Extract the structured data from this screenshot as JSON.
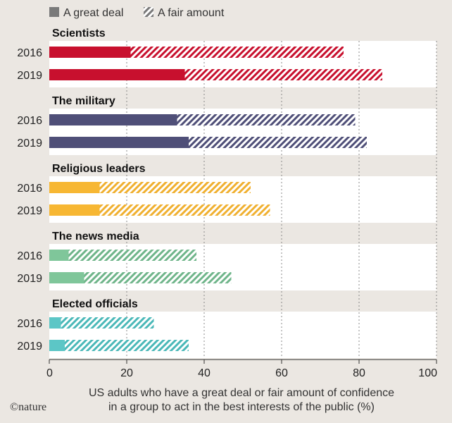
{
  "chart_data": {
    "type": "bar",
    "orientation": "horizontal",
    "stacked": true,
    "legend": {
      "placement": "top-left",
      "entries": [
        {
          "name": "A great deal",
          "pattern": "solid"
        },
        {
          "name": "A fair amount",
          "pattern": "hatched"
        }
      ]
    },
    "groups": [
      {
        "title": "Scientists",
        "color": "#c8102e",
        "hatch_color": "#c8102e",
        "rows": [
          {
            "year": "2016",
            "great_deal": 21,
            "fair_amount": 55
          },
          {
            "year": "2019",
            "great_deal": 35,
            "fair_amount": 51
          }
        ]
      },
      {
        "title": "The military",
        "color": "#4f4f78",
        "hatch_color": "#4f4f78",
        "rows": [
          {
            "year": "2016",
            "great_deal": 33,
            "fair_amount": 46
          },
          {
            "year": "2019",
            "great_deal": 36,
            "fair_amount": 46
          }
        ]
      },
      {
        "title": "Religious leaders",
        "color": "#f7b733",
        "hatch_color": "#f0b030",
        "rows": [
          {
            "year": "2016",
            "great_deal": 13,
            "fair_amount": 39
          },
          {
            "year": "2019",
            "great_deal": 13,
            "fair_amount": 44
          }
        ]
      },
      {
        "title": "The news media",
        "color": "#7fc69a",
        "hatch_color": "#6fb58a",
        "rows": [
          {
            "year": "2016",
            "great_deal": 5,
            "fair_amount": 33
          },
          {
            "year": "2019",
            "great_deal": 9,
            "fair_amount": 38
          }
        ]
      },
      {
        "title": "Elected officials",
        "color": "#5cc6c6",
        "hatch_color": "#4ab8b8",
        "rows": [
          {
            "year": "2016",
            "great_deal": 3,
            "fair_amount": 24
          },
          {
            "year": "2019",
            "great_deal": 4,
            "fair_amount": 32
          }
        ]
      }
    ],
    "xlim": [
      0,
      100
    ],
    "xticks": [
      0,
      20,
      40,
      60,
      80,
      100
    ],
    "xlabel_lines": [
      "US adults who have a great deal or fair amount of confidence",
      "in a group to act in the best interests of the public (%)"
    ],
    "grid": "vertical dotted",
    "credit": "©nature"
  }
}
